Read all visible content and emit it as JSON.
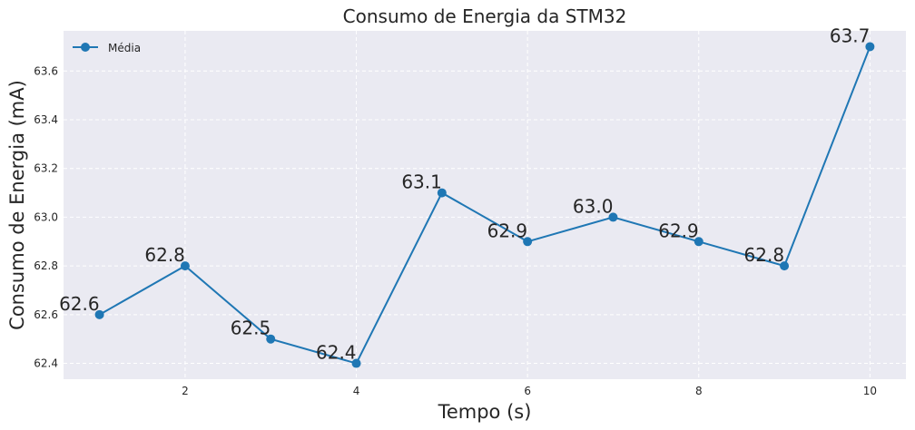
{
  "chart_data": {
    "type": "line",
    "title": "Consumo de Energia da STM32",
    "xlabel": "Tempo (s)",
    "ylabel": "Consumo de Energia (mA)",
    "xlim": [
      0.58,
      10.42
    ],
    "ylim": [
      62.335,
      63.765
    ],
    "xticks": [
      2,
      4,
      6,
      8,
      10
    ],
    "yticks": [
      62.4,
      62.6,
      62.8,
      63.0,
      63.2,
      63.4,
      63.6
    ],
    "ytick_labels": [
      "62.4",
      "62.6",
      "62.8",
      "63.0",
      "63.2",
      "63.4",
      "63.6"
    ],
    "grid": true,
    "legend": "top-left",
    "series": [
      {
        "name": "Média",
        "color": "#1f77b4",
        "x": [
          1,
          2,
          3,
          4,
          5,
          6,
          7,
          8,
          9,
          10
        ],
        "y": [
          62.6,
          62.8,
          62.5,
          62.4,
          63.1,
          62.9,
          63.0,
          62.9,
          62.8,
          63.7
        ],
        "labels": [
          "62.6",
          "62.8",
          "62.5",
          "62.4",
          "63.1",
          "62.9",
          "63.0",
          "62.9",
          "62.8",
          "63.7"
        ]
      }
    ],
    "background_color": "#eaeaf2",
    "grid_color": "#ffffff"
  }
}
